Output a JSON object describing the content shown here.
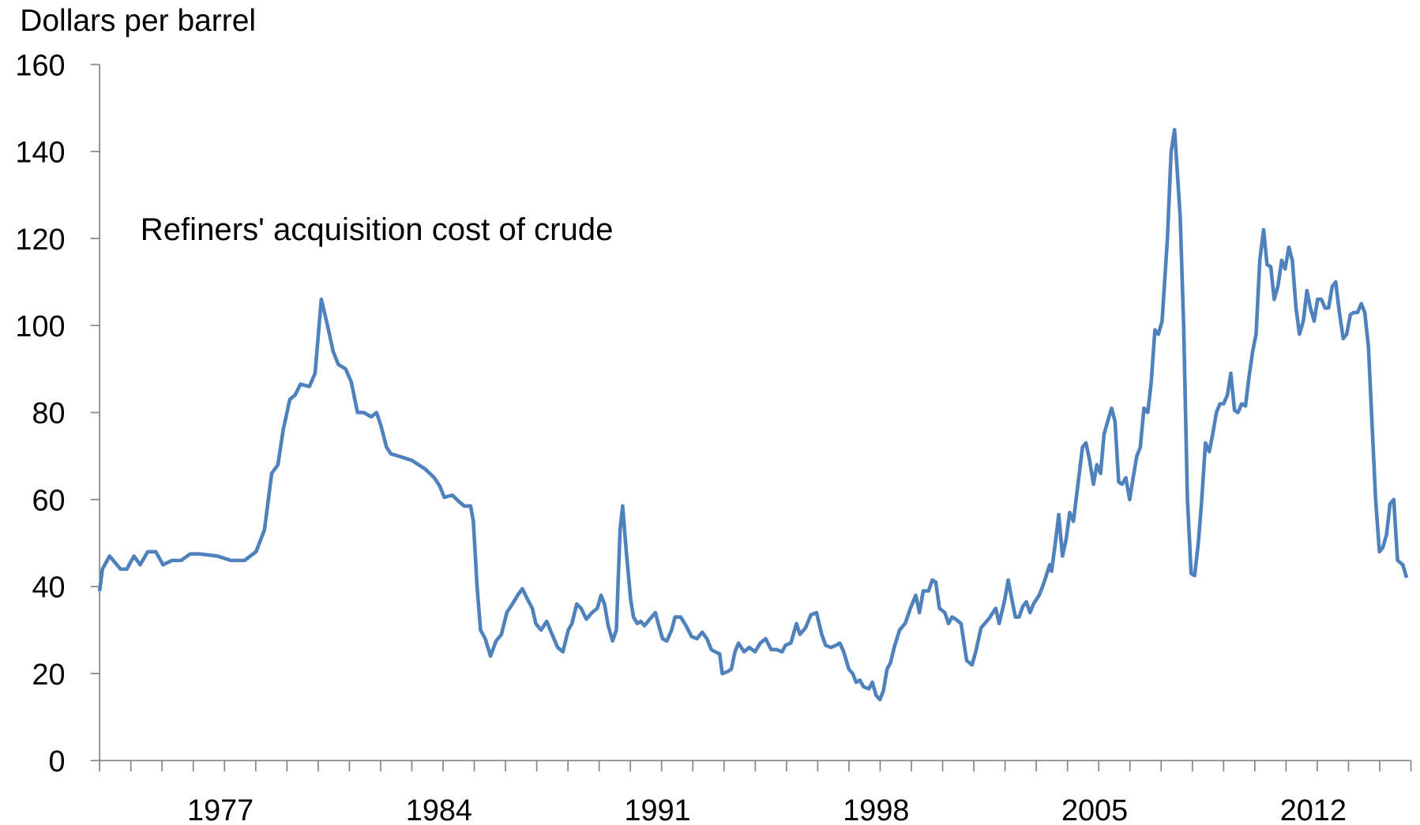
{
  "chart_data": {
    "type": "line",
    "y_label": "Dollars per barrel",
    "xlim": [
      1974,
      2016
    ],
    "xticks": [
      1977,
      1984,
      1991,
      1998,
      2005,
      2012
    ],
    "xminorticks": [
      1974,
      1975,
      1976,
      1977,
      1978,
      1979,
      1980,
      1981,
      1982,
      1983,
      1984,
      1985,
      1986,
      1987,
      1988,
      1989,
      1990,
      1991,
      1992,
      1993,
      1994,
      1995,
      1996,
      1997,
      1998,
      1999,
      2000,
      2001,
      2002,
      2003,
      2004,
      2005,
      2006,
      2007,
      2008,
      2009,
      2010,
      2011,
      2012,
      2013,
      2014,
      2015,
      2016
    ],
    "ylim": [
      0,
      160
    ],
    "yticks": [
      0,
      20,
      40,
      60,
      80,
      100,
      120,
      140,
      160
    ],
    "grid": false,
    "series": [
      {
        "name": "Refiners' acquisition cost of crude",
        "color": "#4f81bd",
        "x": [
          1974.0,
          1974.09,
          1974.32,
          1974.67,
          1974.87,
          1975.1,
          1975.3,
          1975.54,
          1975.8,
          1976.03,
          1976.32,
          1976.61,
          1976.9,
          1977.19,
          1977.77,
          1978.2,
          1978.64,
          1979.01,
          1979.28,
          1979.51,
          1979.71,
          1979.88,
          1980.09,
          1980.26,
          1980.43,
          1980.72,
          1980.9,
          1981.1,
          1981.3,
          1981.48,
          1981.65,
          1981.88,
          1982.06,
          1982.26,
          1982.46,
          1982.7,
          1982.87,
          1983.01,
          1983.19,
          1983.33,
          1983.57,
          1984.0,
          1984.43,
          1984.72,
          1984.9,
          1985.04,
          1985.3,
          1985.51,
          1985.68,
          1985.88,
          1985.97,
          1986.09,
          1986.2,
          1986.35,
          1986.52,
          1986.7,
          1986.87,
          1987.04,
          1987.22,
          1987.39,
          1987.54,
          1987.71,
          1987.86,
          1987.97,
          1988.14,
          1988.32,
          1988.49,
          1988.67,
          1988.84,
          1989.01,
          1989.13,
          1989.28,
          1989.42,
          1989.59,
          1989.77,
          1989.94,
          1990.06,
          1990.17,
          1990.29,
          1990.43,
          1990.55,
          1990.67,
          1990.75,
          1990.87,
          1991.01,
          1991.1,
          1991.22,
          1991.33,
          1991.45,
          1991.62,
          1991.8,
          1991.91,
          1992.03,
          1992.17,
          1992.32,
          1992.43,
          1992.61,
          1992.78,
          1992.96,
          1993.13,
          1993.3,
          1993.45,
          1993.59,
          1993.71,
          1993.86,
          1993.94,
          1994.12,
          1994.23,
          1994.35,
          1994.46,
          1994.64,
          1994.81,
          1994.99,
          1995.16,
          1995.33,
          1995.51,
          1995.68,
          1995.86,
          1995.97,
          1996.14,
          1996.32,
          1996.43,
          1996.61,
          1996.78,
          1996.96,
          1997.13,
          1997.25,
          1997.42,
          1997.59,
          1997.71,
          1997.83,
          1998.0,
          1998.12,
          1998.23,
          1998.35,
          1998.46,
          1998.64,
          1998.75,
          1998.87,
          1998.99,
          1999.1,
          1999.22,
          1999.33,
          1999.45,
          1999.62,
          1999.8,
          1999.97,
          2000.14,
          2000.26,
          2000.38,
          2000.55,
          2000.67,
          2000.78,
          2000.9,
          2001.07,
          2001.19,
          2001.3,
          2001.42,
          2001.59,
          2001.77,
          2001.94,
          2002.06,
          2002.23,
          2002.41,
          2002.52,
          2002.7,
          2002.81,
          2002.99,
          2003.1,
          2003.22,
          2003.33,
          2003.45,
          2003.57,
          2003.68,
          2003.8,
          2003.91,
          2004.09,
          2004.2,
          2004.32,
          2004.43,
          2004.49,
          2004.61,
          2004.72,
          2004.84,
          2004.96,
          2005.07,
          2005.19,
          2005.36,
          2005.48,
          2005.59,
          2005.71,
          2005.83,
          2005.94,
          2006.06,
          2006.17,
          2006.29,
          2006.41,
          2006.52,
          2006.64,
          2006.75,
          2006.87,
          2006.99,
          2007.1,
          2007.22,
          2007.33,
          2007.45,
          2007.57,
          2007.68,
          2007.8,
          2007.91,
          2008.03,
          2008.2,
          2008.32,
          2008.43,
          2008.61,
          2008.72,
          2008.84,
          2008.96,
          2009.07,
          2009.19,
          2009.3,
          2009.42,
          2009.54,
          2009.65,
          2009.77,
          2009.88,
          2010.0,
          2010.12,
          2010.23,
          2010.35,
          2010.46,
          2010.58,
          2010.7,
          2010.81,
          2010.93,
          2011.04,
          2011.16,
          2011.28,
          2011.39,
          2011.51,
          2011.62,
          2011.74,
          2011.86,
          2011.97,
          2012.09,
          2012.2,
          2012.32,
          2012.43,
          2012.55,
          2012.67,
          2012.78,
          2012.9,
          2013.01,
          2013.13,
          2013.25,
          2013.36,
          2013.48,
          2013.59,
          2013.71,
          2013.83,
          2013.94,
          2014.06,
          2014.17,
          2014.29,
          2014.41,
          2014.52,
          2014.64,
          2014.75,
          2014.87,
          2014.99,
          2015.1,
          2015.22,
          2015.33,
          2015.45,
          2015.57,
          2015.74,
          2015.86
        ],
        "values": [
          39,
          44,
          47,
          44,
          44,
          47,
          45,
          48,
          48,
          45,
          46,
          46,
          47.5,
          47.5,
          47,
          46,
          46,
          48,
          53,
          66,
          68,
          76,
          83,
          84,
          86.5,
          86,
          89,
          106,
          100,
          94,
          91,
          90,
          87,
          80,
          80,
          79,
          80,
          77,
          72,
          70.5,
          70,
          69,
          67,
          65,
          63,
          60.5,
          61,
          59.5,
          58.5,
          58.5,
          55,
          40,
          30,
          28,
          24,
          27.5,
          29,
          34,
          36,
          38,
          39.5,
          37,
          35,
          31.5,
          30,
          32,
          29,
          26,
          25,
          30,
          31.5,
          36,
          35,
          32.5,
          34,
          35,
          38,
          36,
          31,
          27.5,
          30,
          53,
          58.5,
          48,
          37,
          33,
          31.5,
          32,
          31,
          32.5,
          34,
          31,
          28,
          27.5,
          30,
          33,
          33,
          31,
          28.5,
          28,
          29.5,
          28,
          25.5,
          25,
          24.5,
          20,
          20.5,
          21,
          25,
          27,
          25,
          26,
          25,
          27,
          28,
          25.5,
          25.5,
          25,
          26.5,
          27,
          31.5,
          29,
          30.5,
          33.5,
          34,
          29,
          26.5,
          26,
          26.5,
          27,
          25,
          21,
          20,
          18,
          18.5,
          17,
          16.5,
          18,
          15,
          14,
          16,
          21,
          22.5,
          26,
          30,
          31.5,
          35,
          38,
          34,
          39,
          39,
          41.5,
          41,
          35,
          34,
          31.5,
          33,
          32.5,
          31.5,
          23,
          22,
          25,
          30.5,
          32,
          33,
          35,
          31.5,
          37,
          41.5,
          37,
          33,
          33,
          35.5,
          36.5,
          34,
          36,
          38,
          40,
          42.5,
          45,
          43.5,
          50,
          56.5,
          47,
          51,
          57,
          55,
          65,
          72,
          73,
          69,
          63.5,
          68,
          66,
          75,
          78,
          81,
          78,
          64,
          63.5,
          65,
          60,
          65,
          70,
          72,
          81,
          80,
          87,
          99,
          98,
          101,
          120,
          140,
          145,
          125,
          100,
          60,
          43,
          42.5,
          50,
          60,
          73,
          71,
          75,
          80,
          82,
          82,
          84,
          89,
          80.5,
          80,
          82,
          81.5,
          88,
          94,
          98,
          115,
          122,
          114,
          113.5,
          106,
          109,
          115,
          113,
          118,
          115,
          104,
          98,
          101,
          108,
          104,
          101,
          106,
          106,
          104,
          104,
          109,
          110,
          103,
          97,
          98,
          102.5,
          103,
          103,
          105,
          103,
          95,
          78,
          60,
          48,
          49,
          52,
          59,
          60,
          46,
          45,
          42
        ]
      }
    ]
  }
}
